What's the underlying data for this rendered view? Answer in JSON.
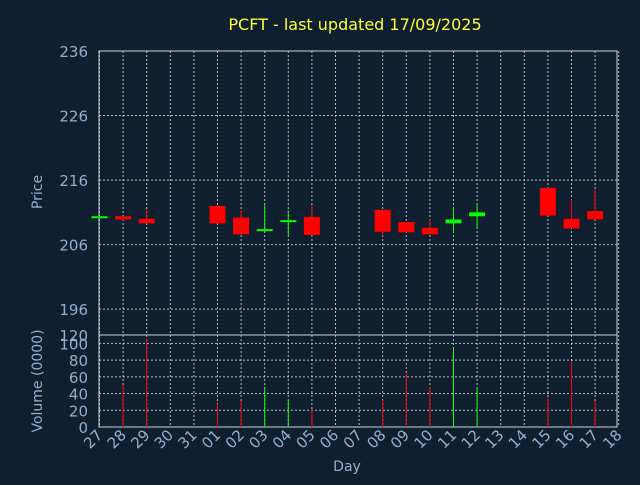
{
  "chart_data": {
    "type": "candlestick",
    "title": "PCFT - last updated 17/09/2025",
    "xlabel": "Day",
    "price_panel": {
      "ylabel": "Price",
      "ylim": [
        192,
        236
      ],
      "yticks": [
        "236",
        "226",
        "216",
        "206",
        "196"
      ],
      "grid": true
    },
    "volume_panel": {
      "ylabel": "Volume (0000)",
      "ylim": [
        0,
        110
      ],
      "yticks": [
        "120",
        "100",
        "80",
        "60",
        "40",
        "20",
        "0"
      ],
      "grid": true
    },
    "x_ticks": [
      "27",
      "28",
      "29",
      "30",
      "31",
      "01",
      "02",
      "03",
      "04",
      "05",
      "06",
      "07",
      "08",
      "09",
      "10",
      "11",
      "12",
      "13",
      "14",
      "15",
      "16",
      "17",
      "18"
    ],
    "candles": [
      {
        "day": "27",
        "open": 210.2,
        "close": 210.4,
        "high": 210.4,
        "low": 210.2,
        "volume": 0
      },
      {
        "day": "28",
        "open": 210.4,
        "close": 209.9,
        "high": 210.4,
        "low": 209.8,
        "volume": 50
      },
      {
        "day": "29",
        "open": 210.0,
        "close": 209.3,
        "high": 211.5,
        "low": 209.3,
        "volume": 105
      },
      {
        "day": "01",
        "open": 212.0,
        "close": 209.3,
        "high": 212.0,
        "low": 209.3,
        "volume": 28
      },
      {
        "day": "02",
        "open": 210.2,
        "close": 207.6,
        "high": 211.4,
        "low": 207.6,
        "volume": 31
      },
      {
        "day": "03",
        "open": 208.2,
        "close": 208.4,
        "high": 212.1,
        "low": 208.0,
        "volume": 48
      },
      {
        "day": "04",
        "open": 209.6,
        "close": 209.8,
        "high": 211.3,
        "low": 207.5,
        "volume": 33
      },
      {
        "day": "05",
        "open": 210.3,
        "close": 207.5,
        "high": 212.1,
        "low": 207.5,
        "volume": 21
      },
      {
        "day": "08",
        "open": 211.4,
        "close": 208.0,
        "high": 211.4,
        "low": 207.3,
        "volume": 32
      },
      {
        "day": "09",
        "open": 209.5,
        "close": 207.9,
        "high": 209.5,
        "low": 207.9,
        "volume": 65
      },
      {
        "day": "10",
        "open": 208.6,
        "close": 207.6,
        "high": 209.9,
        "low": 207.6,
        "volume": 48
      },
      {
        "day": "11",
        "open": 209.3,
        "close": 209.9,
        "high": 211.9,
        "low": 208.1,
        "volume": 95
      },
      {
        "day": "12",
        "open": 210.4,
        "close": 211.0,
        "high": 212.4,
        "low": 208.6,
        "volume": 47
      },
      {
        "day": "15",
        "open": 214.8,
        "close": 210.5,
        "high": 214.8,
        "low": 210.5,
        "volume": 35
      },
      {
        "day": "16",
        "open": 210.0,
        "close": 208.5,
        "high": 213.0,
        "low": 208.5,
        "volume": 78
      },
      {
        "day": "17",
        "open": 211.2,
        "close": 209.9,
        "high": 214.5,
        "low": 209.9,
        "volume": 31
      }
    ],
    "colors": {
      "background": "#0f1f2f",
      "plot_border": "#c8d4e0",
      "grid": "#c8d4e0",
      "title": "#ffff33",
      "axis_text": "#8fb0d0",
      "up": "#00ff00",
      "down": "#ff0000"
    }
  }
}
